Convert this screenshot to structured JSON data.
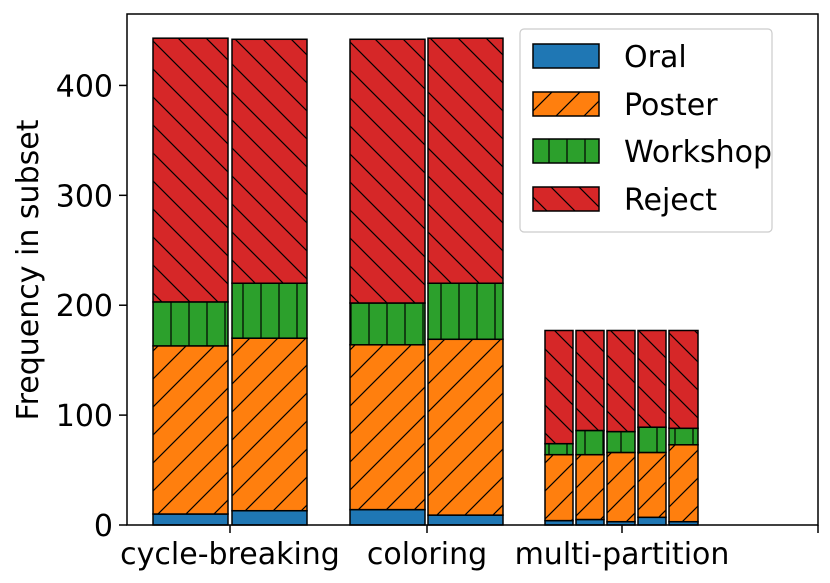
{
  "chart_data": {
    "type": "bar",
    "stacked": true,
    "title": "",
    "xlabel": "",
    "ylabel": "Frequency in subset",
    "ylim": [
      0,
      465
    ],
    "yticks": [
      0,
      100,
      200,
      300,
      400
    ],
    "categories": [
      "cycle-breaking",
      "coloring",
      "multi-partition"
    ],
    "legend": {
      "placement": "top-right",
      "entries": [
        {
          "name": "Oral",
          "color": "#1f77b4",
          "hatch": "none"
        },
        {
          "name": "Poster",
          "color": "#ff7f0e",
          "hatch": "forward-diagonal"
        },
        {
          "name": "Workshop",
          "color": "#2ca02c",
          "hatch": "vertical"
        },
        {
          "name": "Reject",
          "color": "#d62728",
          "hatch": "back-diagonal"
        }
      ]
    },
    "bars": [
      {
        "category": "cycle-breaking",
        "Oral": 10,
        "Poster": 153,
        "Workshop": 40,
        "Reject": 240
      },
      {
        "category": "cycle-breaking",
        "Oral": 13,
        "Poster": 157,
        "Workshop": 50,
        "Reject": 222
      },
      {
        "category": "coloring",
        "Oral": 14,
        "Poster": 150,
        "Workshop": 38,
        "Reject": 240
      },
      {
        "category": "coloring",
        "Oral": 9,
        "Poster": 160,
        "Workshop": 51,
        "Reject": 223
      },
      {
        "category": "multi-partition",
        "Oral": 4,
        "Poster": 60,
        "Workshop": 10,
        "Reject": 103
      },
      {
        "category": "multi-partition",
        "Oral": 5,
        "Poster": 59,
        "Workshop": 22,
        "Reject": 91
      },
      {
        "category": "multi-partition",
        "Oral": 3,
        "Poster": 63,
        "Workshop": 19,
        "Reject": 92
      },
      {
        "category": "multi-partition",
        "Oral": 7,
        "Poster": 59,
        "Workshop": 23,
        "Reject": 88
      },
      {
        "category": "multi-partition",
        "Oral": 3,
        "Poster": 70,
        "Workshop": 15,
        "Reject": 89
      }
    ]
  }
}
